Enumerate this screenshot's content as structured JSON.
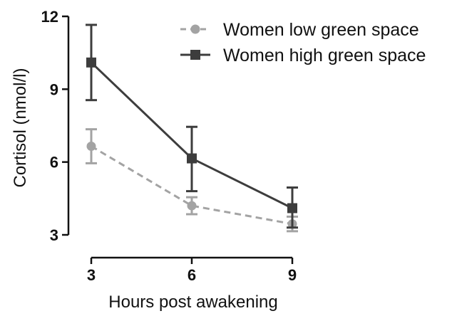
{
  "chart_data": {
    "type": "line",
    "xlabel": "Hours post awakening",
    "ylabel": "Cortisol (nmol/l)",
    "x": [
      3,
      6,
      9
    ],
    "xticks": [
      "3",
      "6",
      "9"
    ],
    "xlim": [
      3,
      9
    ],
    "yticks": [
      "3",
      "6",
      "9",
      "12"
    ],
    "ylim": [
      3,
      12
    ],
    "legend_position": "top-right",
    "series": [
      {
        "name": "Women low green space",
        "values": [
          6.65,
          4.2,
          3.45
        ],
        "err_low": [
          5.95,
          3.85,
          3.15
        ],
        "err_high": [
          7.35,
          4.55,
          3.75
        ],
        "color": "#a3a3a3",
        "line_style": "dashed",
        "marker": "circle"
      },
      {
        "name": "Women high green space",
        "values": [
          10.1,
          6.15,
          4.1
        ],
        "err_low": [
          8.55,
          4.8,
          3.3
        ],
        "err_high": [
          11.65,
          7.45,
          4.95
        ],
        "color": "#3d3d3d",
        "line_style": "solid",
        "marker": "square"
      }
    ]
  }
}
